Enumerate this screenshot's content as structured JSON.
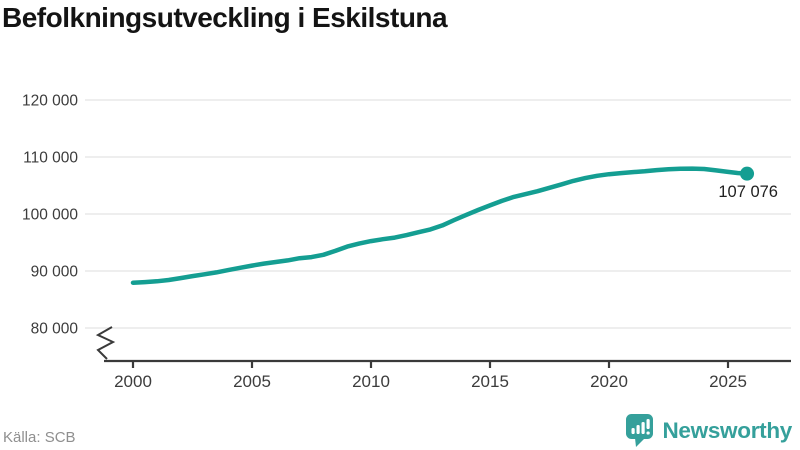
{
  "title": "Befolkningsutveckling i Eskilstuna",
  "footer": {
    "source": "Källa: SCB",
    "brand": "Newsworthy"
  },
  "colors": {
    "line": "#149e92",
    "brand": "#35a09b",
    "grid": "#e3e3e3",
    "axis": "#3a3a3a",
    "tick_label": "#3c3c3c",
    "title": "#141414",
    "muted": "#8f8f8f",
    "end_label": "#1f1f1f",
    "background": "#ffffff"
  },
  "chart_data": {
    "type": "line",
    "title": "Befolkningsutveckling i Eskilstuna",
    "xlabel": "",
    "ylabel": "",
    "grid": true,
    "legend": "none",
    "axis_break_bottom_left": true,
    "y_shown_range": [
      80000,
      120000
    ],
    "x_shown_range": [
      2000,
      2026
    ],
    "y_ticks": [
      {
        "value": 120000,
        "label": "120 000"
      },
      {
        "value": 110000,
        "label": "110 000"
      },
      {
        "value": 100000,
        "label": "100 000"
      },
      {
        "value": 90000,
        "label": "90 000"
      },
      {
        "value": 80000,
        "label": "80 000"
      }
    ],
    "x_ticks": [
      {
        "value": 2000,
        "label": "2000"
      },
      {
        "value": 2005,
        "label": "2005"
      },
      {
        "value": 2010,
        "label": "2010"
      },
      {
        "value": 2015,
        "label": "2015"
      },
      {
        "value": 2020,
        "label": "2020"
      },
      {
        "value": 2025,
        "label": "2025"
      }
    ],
    "end_point_label": "107 076",
    "end_point_value": 107076,
    "series": [
      {
        "name": "Befolkning i Eskilstuna",
        "x": [
          2000,
          2000.5,
          2001,
          2001.5,
          2002,
          2002.5,
          2003,
          2003.5,
          2004,
          2004.5,
          2005,
          2005.5,
          2006,
          2006.5,
          2007,
          2007.5,
          2008,
          2008.5,
          2009,
          2009.5,
          2010,
          2010.5,
          2011,
          2011.5,
          2012,
          2012.5,
          2013,
          2013.5,
          2014,
          2014.5,
          2015,
          2015.5,
          2016,
          2016.5,
          2017,
          2017.5,
          2018,
          2018.5,
          2019,
          2019.5,
          2020,
          2020.5,
          2021,
          2021.5,
          2022,
          2022.5,
          2023,
          2023.5,
          2024,
          2024.5,
          2025,
          2025.4,
          2025.8
        ],
        "y": [
          87950,
          88050,
          88200,
          88420,
          88750,
          89100,
          89420,
          89760,
          90150,
          90560,
          90950,
          91290,
          91580,
          91860,
          92250,
          92430,
          92850,
          93520,
          94280,
          94800,
          95250,
          95580,
          95860,
          96300,
          96800,
          97300,
          98000,
          98950,
          99850,
          100700,
          101500,
          102300,
          103000,
          103500,
          104000,
          104600,
          105200,
          105800,
          106300,
          106700,
          106980,
          107180,
          107350,
          107500,
          107700,
          107850,
          107950,
          107960,
          107900,
          107650,
          107380,
          107200,
          107076
        ]
      }
    ]
  }
}
